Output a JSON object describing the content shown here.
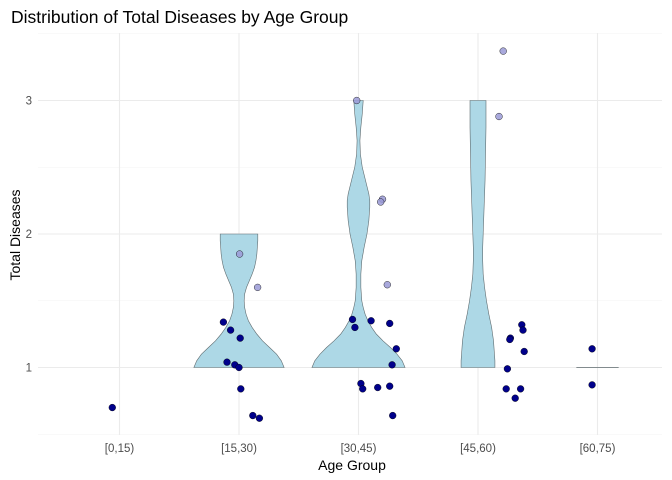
{
  "chart_data": {
    "type": "violin",
    "title": "Distribution of Total Diseases by Age Group",
    "xlabel": "Age Group",
    "ylabel": "Total Diseases",
    "categories": [
      "[0,15)",
      "[15,30)",
      "[30,45)",
      "[45,60)",
      "[60,75)"
    ],
    "yticks": [
      1,
      2,
      3
    ],
    "ylim": [
      0.45,
      3.5
    ],
    "grid": true,
    "colors": {
      "violin_fill": "#add8e6",
      "violin_outline": "#5f6b6f",
      "point_fill": "#00008b",
      "point_fill_light": "#9a9ad6"
    },
    "violins": [
      {
        "category": "[0,15)",
        "profile": []
      },
      {
        "category": "[15,30)",
        "profile": [
          [
            1.0,
            0.96
          ],
          [
            1.05,
            0.9
          ],
          [
            1.1,
            0.8
          ],
          [
            1.15,
            0.65
          ],
          [
            1.2,
            0.5
          ],
          [
            1.25,
            0.38
          ],
          [
            1.3,
            0.28
          ],
          [
            1.35,
            0.2
          ],
          [
            1.4,
            0.15
          ],
          [
            1.45,
            0.12
          ],
          [
            1.5,
            0.11
          ],
          [
            1.55,
            0.12
          ],
          [
            1.6,
            0.16
          ],
          [
            1.65,
            0.22
          ],
          [
            1.7,
            0.28
          ],
          [
            1.75,
            0.33
          ],
          [
            1.8,
            0.36
          ],
          [
            1.85,
            0.38
          ],
          [
            1.9,
            0.39
          ],
          [
            1.95,
            0.4
          ],
          [
            2.0,
            0.4
          ]
        ]
      },
      {
        "category": "[30,45)",
        "profile": [
          [
            1.0,
            0.99
          ],
          [
            1.05,
            0.93
          ],
          [
            1.1,
            0.82
          ],
          [
            1.15,
            0.68
          ],
          [
            1.2,
            0.52
          ],
          [
            1.25,
            0.38
          ],
          [
            1.3,
            0.28
          ],
          [
            1.35,
            0.2
          ],
          [
            1.4,
            0.14
          ],
          [
            1.45,
            0.1
          ],
          [
            1.5,
            0.07
          ],
          [
            1.6,
            0.05
          ],
          [
            1.7,
            0.05
          ],
          [
            1.8,
            0.07
          ],
          [
            1.9,
            0.12
          ],
          [
            2.0,
            0.18
          ],
          [
            2.1,
            0.22
          ],
          [
            2.2,
            0.24
          ],
          [
            2.25,
            0.24
          ],
          [
            2.3,
            0.22
          ],
          [
            2.4,
            0.15
          ],
          [
            2.5,
            0.08
          ],
          [
            2.6,
            0.04
          ],
          [
            2.7,
            0.03
          ],
          [
            2.8,
            0.05
          ],
          [
            2.9,
            0.08
          ],
          [
            3.0,
            0.1
          ]
        ]
      },
      {
        "category": "[45,60)",
        "profile": [
          [
            1.0,
            0.36
          ],
          [
            1.05,
            0.36
          ],
          [
            1.1,
            0.35
          ],
          [
            1.15,
            0.34
          ],
          [
            1.2,
            0.33
          ],
          [
            1.25,
            0.31
          ],
          [
            1.3,
            0.29
          ],
          [
            1.35,
            0.26
          ],
          [
            1.4,
            0.23
          ],
          [
            1.5,
            0.18
          ],
          [
            1.6,
            0.14
          ],
          [
            1.7,
            0.11
          ],
          [
            1.8,
            0.1
          ],
          [
            1.9,
            0.1
          ],
          [
            2.0,
            0.11
          ],
          [
            2.2,
            0.13
          ],
          [
            2.4,
            0.15
          ],
          [
            2.6,
            0.16
          ],
          [
            2.8,
            0.17
          ],
          [
            3.0,
            0.17
          ]
        ]
      },
      {
        "category": "[60,75)",
        "profile": [
          [
            1.0,
            0.45
          ],
          [
            1.0,
            0.45
          ]
        ]
      }
    ],
    "points": [
      {
        "category": "[0,15)",
        "jitter": -0.12,
        "y": 0.7,
        "light": false
      },
      {
        "category": "[15,30)",
        "jitter": -0.26,
        "y": 1.34,
        "light": false
      },
      {
        "category": "[15,30)",
        "jitter": -0.14,
        "y": 1.28,
        "light": false
      },
      {
        "category": "[15,30)",
        "jitter": 0.02,
        "y": 1.22,
        "light": false
      },
      {
        "category": "[15,30)",
        "jitter": 0.01,
        "y": 1.85,
        "light": true
      },
      {
        "category": "[15,30)",
        "jitter": 0.31,
        "y": 1.6,
        "light": true
      },
      {
        "category": "[15,30)",
        "jitter": -0.2,
        "y": 1.04,
        "light": false
      },
      {
        "category": "[15,30)",
        "jitter": -0.07,
        "y": 1.02,
        "light": false
      },
      {
        "category": "[15,30)",
        "jitter": 0.0,
        "y": 1.0,
        "light": false
      },
      {
        "category": "[15,30)",
        "jitter": 0.03,
        "y": 0.84,
        "light": false
      },
      {
        "category": "[15,30)",
        "jitter": 0.23,
        "y": 0.64,
        "light": false
      },
      {
        "category": "[15,30)",
        "jitter": 0.34,
        "y": 0.62,
        "light": false
      },
      {
        "category": "[30,45)",
        "jitter": -0.03,
        "y": 3.0,
        "light": true
      },
      {
        "category": "[30,45)",
        "jitter": 0.4,
        "y": 2.26,
        "light": true
      },
      {
        "category": "[30,45)",
        "jitter": 0.37,
        "y": 2.24,
        "light": true
      },
      {
        "category": "[30,45)",
        "jitter": 0.48,
        "y": 1.62,
        "light": true
      },
      {
        "category": "[30,45)",
        "jitter": -0.1,
        "y": 1.36,
        "light": false
      },
      {
        "category": "[30,45)",
        "jitter": 0.21,
        "y": 1.35,
        "light": false
      },
      {
        "category": "[30,45)",
        "jitter": 0.52,
        "y": 1.33,
        "light": false
      },
      {
        "category": "[30,45)",
        "jitter": -0.06,
        "y": 1.3,
        "light": false
      },
      {
        "category": "[30,45)",
        "jitter": 0.63,
        "y": 1.14,
        "light": false
      },
      {
        "category": "[30,45)",
        "jitter": 0.56,
        "y": 1.02,
        "light": false
      },
      {
        "category": "[30,45)",
        "jitter": 0.04,
        "y": 0.88,
        "light": false
      },
      {
        "category": "[30,45)",
        "jitter": 0.32,
        "y": 0.85,
        "light": false
      },
      {
        "category": "[30,45)",
        "jitter": 0.52,
        "y": 0.86,
        "light": false
      },
      {
        "category": "[30,45)",
        "jitter": 0.07,
        "y": 0.84,
        "light": false
      },
      {
        "category": "[30,45)",
        "jitter": 0.57,
        "y": 0.64,
        "light": false
      },
      {
        "category": "[45,60)",
        "jitter": 0.42,
        "y": 3.37,
        "light": true
      },
      {
        "category": "[45,60)",
        "jitter": 0.35,
        "y": 2.88,
        "light": true
      },
      {
        "category": "[45,60)",
        "jitter": 0.73,
        "y": 1.32,
        "light": false
      },
      {
        "category": "[45,60)",
        "jitter": 0.75,
        "y": 1.28,
        "light": false
      },
      {
        "category": "[45,60)",
        "jitter": 0.54,
        "y": 1.22,
        "light": false
      },
      {
        "category": "[45,60)",
        "jitter": 0.53,
        "y": 1.21,
        "light": false
      },
      {
        "category": "[45,60)",
        "jitter": 0.77,
        "y": 1.12,
        "light": false
      },
      {
        "category": "[45,60)",
        "jitter": 0.49,
        "y": 0.99,
        "light": false
      },
      {
        "category": "[45,60)",
        "jitter": 0.47,
        "y": 0.84,
        "light": false
      },
      {
        "category": "[45,60)",
        "jitter": 0.71,
        "y": 0.84,
        "light": false
      },
      {
        "category": "[45,60)",
        "jitter": 0.62,
        "y": 0.77,
        "light": false
      },
      {
        "category": "[60,75)",
        "jitter": -0.09,
        "y": 1.14,
        "light": false
      },
      {
        "category": "[60,75)",
        "jitter": -0.09,
        "y": 0.87,
        "light": false
      }
    ]
  }
}
